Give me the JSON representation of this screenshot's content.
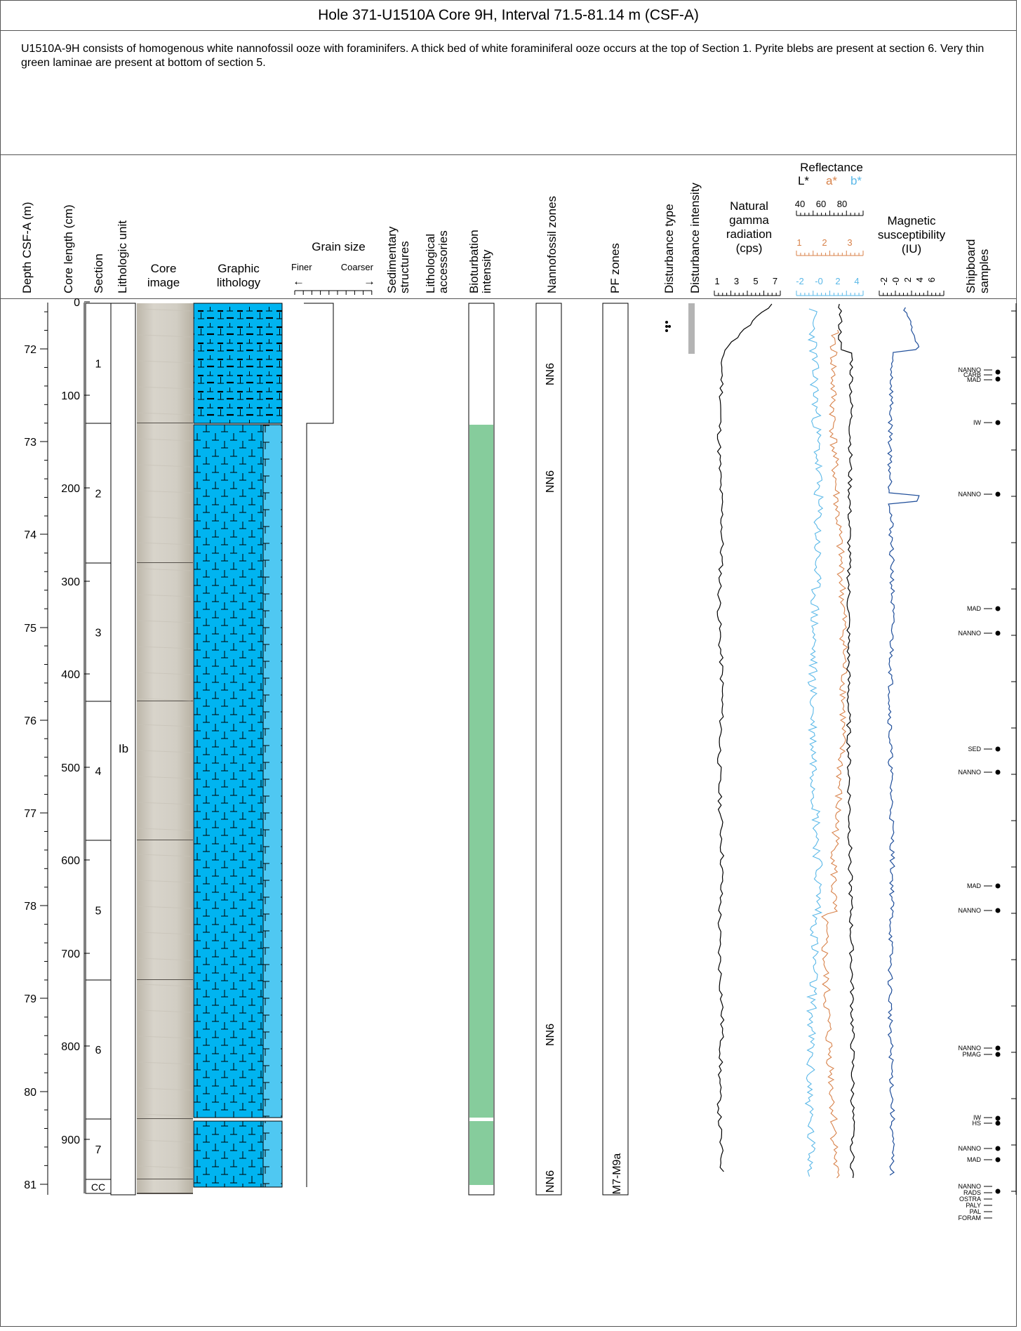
{
  "title": "Hole 371-U1510A Core 9H, Interval 71.5-81.14 m (CSF-A)",
  "description": "U1510A-9H consists of homogenous white nannofossil ooze with foraminifers. A thick bed of white foraminiferal ooze occurs at the top of Section 1. Pyrite blebs are present at section 6. Very thin green laminae are present at bottom of section 5.",
  "headers": {
    "depth": "Depth CSF-A (m)",
    "core_length": "Core length (cm)",
    "section": "Section",
    "lithologic_unit": "Lithologic unit",
    "core_image_1": "Core",
    "core_image_2": "image",
    "graphic_1": "Graphic",
    "graphic_2": "lithology",
    "grain_size": "Grain size",
    "finer": "Finer",
    "coarser": "Coarser",
    "arrow_left": "←",
    "arrow_right": "→",
    "sed_1": "Sedimentary",
    "sed_2": "structures",
    "lith_acc_1": "Lithological",
    "lith_acc_2": "accessories",
    "biot_1": "Bioturbation",
    "biot_2": "intensity",
    "nanno_zones": "Nannofossil zones",
    "pf_zones": "PF zones",
    "dist_type": "Disturbance type",
    "dist_int": "Disturbance intensity",
    "ngr_1": "Natural",
    "ngr_2": "gamma",
    "ngr_3": "radiation",
    "ngr_4": "(cps)",
    "reflectance": "Reflectance",
    "refl_L": "L*",
    "refl_a": "a*",
    "refl_b": "b*",
    "ms_1": "Magnetic",
    "ms_2": "susceptibility",
    "ms_3": "(IU)",
    "ship_1": "Shipboard",
    "ship_2": "samples"
  },
  "scales": {
    "ngr_ticks": [
      "1",
      "3",
      "5",
      "7"
    ],
    "L_ticks": [
      "40",
      "60",
      "80"
    ],
    "a_ticks": [
      "1",
      "2",
      "3"
    ],
    "b_ticks": [
      "-2",
      "-0",
      "2",
      "4"
    ],
    "ms_ticks": [
      "-2",
      "-0",
      "2",
      "4",
      "6"
    ]
  },
  "depth_ticks": [
    "72",
    "73",
    "74",
    "75",
    "76",
    "77",
    "78",
    "79",
    "80",
    "81"
  ],
  "core_length_ticks": [
    "0",
    "100",
    "200",
    "300",
    "400",
    "500",
    "600",
    "700",
    "800",
    "900"
  ],
  "sections": [
    "1",
    "2",
    "3",
    "4",
    "5",
    "6",
    "7",
    "CC"
  ],
  "lithologic_unit": "Ib",
  "nannofossil_zones": [
    "NN6",
    "NN6",
    "NN6",
    "NN6"
  ],
  "pf_zone": "M7-M9a",
  "colors": {
    "ooze_blue": "#00b4f0",
    "light_blue": "#4fc8f2",
    "bioturbation_green": "#86cc9c",
    "L_star": "#000000",
    "a_star": "#d8824a",
    "b_star": "#5ab8e8",
    "ms_line": "#1f4e9a",
    "disturbance_gray": "#b4b4b4"
  },
  "samples": [
    {
      "label": "NANNO"
    },
    {
      "label": "CARB"
    },
    {
      "label": "MAD"
    },
    {
      "label": "IW"
    },
    {
      "label": "NANNO"
    },
    {
      "label": "MAD"
    },
    {
      "label": "NANNO"
    },
    {
      "label": "SED"
    },
    {
      "label": "NANNO"
    },
    {
      "label": "MAD"
    },
    {
      "label": "NANNO"
    },
    {
      "label": "NANNO"
    },
    {
      "label": "PMAG"
    },
    {
      "label": "IW"
    },
    {
      "label": "HS"
    },
    {
      "label": "NANNO"
    },
    {
      "label": "MAD"
    },
    {
      "label": "NANNO"
    },
    {
      "label": "RADS"
    },
    {
      "label": "OSTRA"
    },
    {
      "label": "PALY"
    },
    {
      "label": "PAL"
    },
    {
      "label": "FORAM"
    }
  ]
}
